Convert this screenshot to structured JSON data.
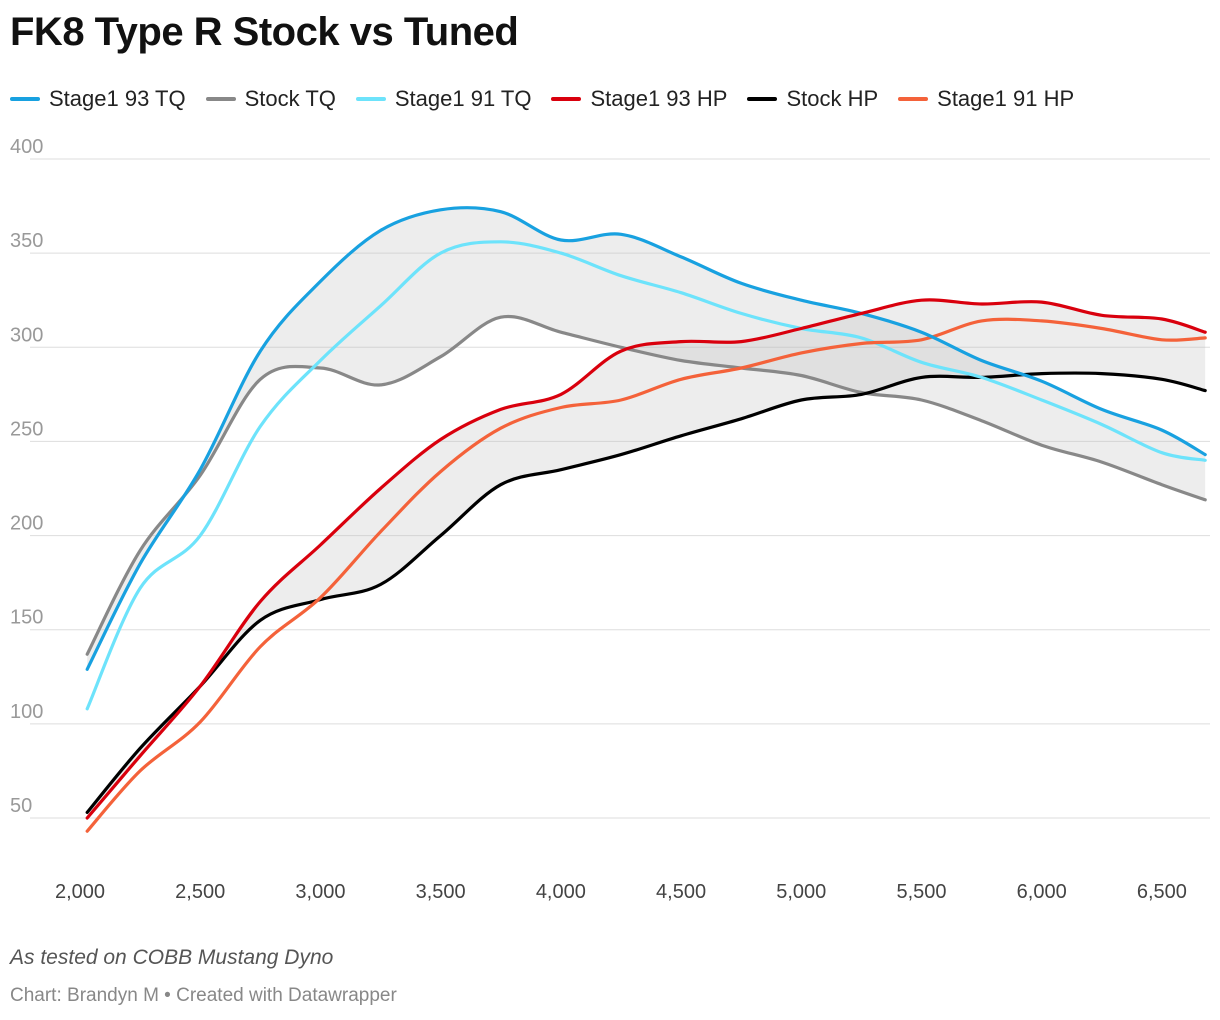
{
  "header": {
    "title": "FK8 Type R Stock vs Tuned"
  },
  "footer": {
    "note": "As tested on COBB Mustang Dyno",
    "credit": "Chart: Brandyn M • Created with Datawrapper"
  },
  "chart_data": {
    "type": "line",
    "title": "FK8 Type R Stock vs Tuned",
    "xlabel": "",
    "ylabel": "",
    "xlim": [
      2000,
      6700
    ],
    "ylim": [
      30,
      400
    ],
    "x_ticks": [
      2000,
      2500,
      3000,
      3500,
      4000,
      4500,
      5000,
      5500,
      6000,
      6500
    ],
    "x_tick_labels": [
      "2,000",
      "2,500",
      "3,000",
      "3,500",
      "4,000",
      "4,500",
      "5,000",
      "5,500",
      "6,000",
      "6,500"
    ],
    "y_ticks": [
      50,
      100,
      150,
      200,
      250,
      300,
      350,
      400
    ],
    "y_tick_labels": [
      "50",
      "100",
      "150",
      "200",
      "250",
      "300",
      "350",
      "400"
    ],
    "grid": true,
    "legend_position": "top-left",
    "x": [
      2030,
      2250,
      2500,
      2750,
      3000,
      3250,
      3500,
      3750,
      4000,
      4250,
      4500,
      4750,
      5000,
      5250,
      5500,
      5750,
      6000,
      6250,
      6500,
      6680
    ],
    "series": [
      {
        "name": "Stage1 93 TQ",
        "color": "#18a1e0",
        "values": [
          129,
          185,
          235,
          298,
          335,
          362,
          373,
          372,
          357,
          360,
          348,
          334,
          325,
          318,
          308,
          293,
          282,
          267,
          256,
          243
        ]
      },
      {
        "name": "Stock TQ",
        "color": "#888888",
        "values": [
          137,
          192,
          232,
          283,
          289,
          280,
          295,
          316,
          308,
          300,
          293,
          289,
          285,
          276,
          272,
          261,
          248,
          239,
          227,
          219
        ]
      },
      {
        "name": "Stage1 91 TQ",
        "color": "#6de3fb",
        "values": [
          108,
          172,
          200,
          258,
          293,
          322,
          350,
          356,
          350,
          338,
          329,
          318,
          310,
          305,
          292,
          284,
          272,
          259,
          244,
          240
        ]
      },
      {
        "name": "Stage1 93 HP",
        "color": "#d9000d",
        "values": [
          50,
          83,
          120,
          165,
          195,
          225,
          251,
          267,
          275,
          298,
          303,
          303,
          310,
          318,
          325,
          323,
          324,
          317,
          315,
          308
        ]
      },
      {
        "name": "Stock HP",
        "color": "#000000",
        "values": [
          53,
          87,
          120,
          155,
          166,
          174,
          200,
          227,
          235,
          243,
          253,
          262,
          272,
          275,
          284,
          284,
          286,
          286,
          283,
          277
        ]
      },
      {
        "name": "Stage1 91 HP",
        "color": "#f4623a",
        "values": [
          43,
          75,
          101,
          141,
          167,
          202,
          234,
          257,
          268,
          272,
          283,
          289,
          297,
          302,
          304,
          314,
          314,
          310,
          304,
          305
        ]
      }
    ]
  }
}
